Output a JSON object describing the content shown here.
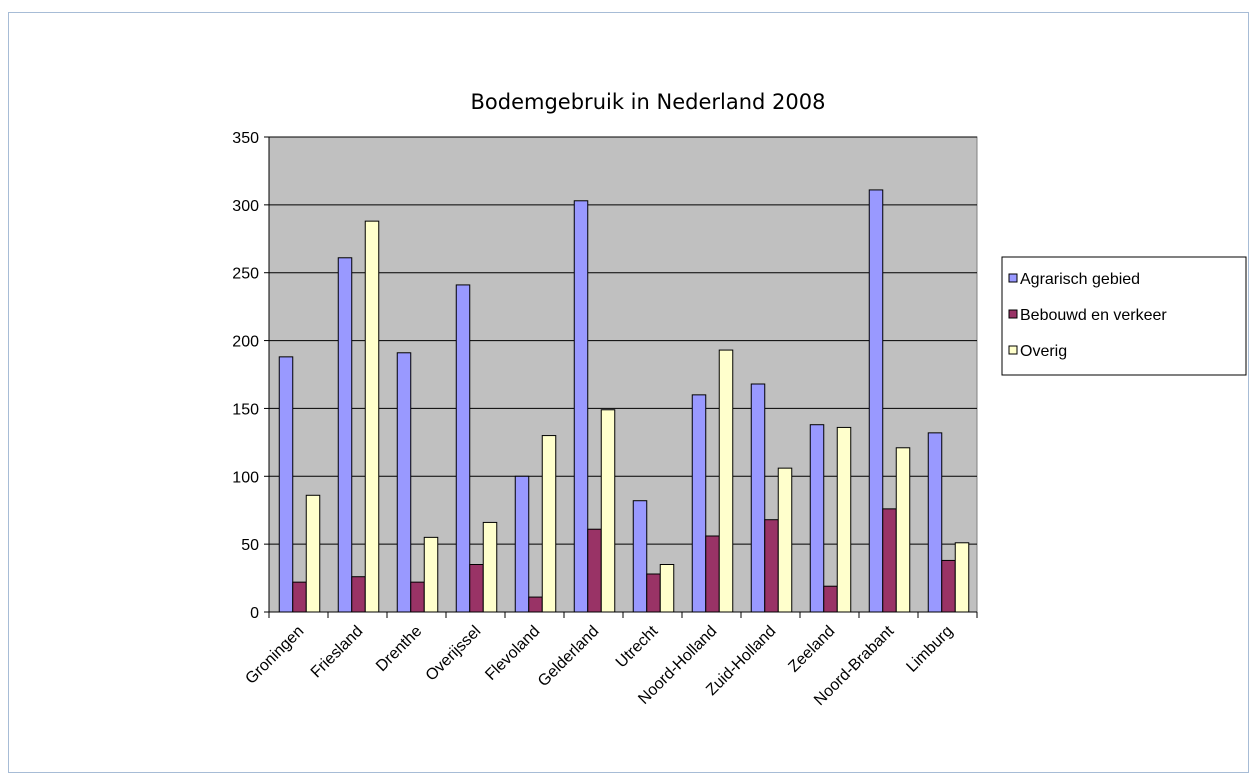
{
  "chart_data": {
    "type": "bar",
    "title": "Bodemgebruik in Nederland 2008",
    "xlabel": "",
    "ylabel": "",
    "ylim": [
      0,
      350
    ],
    "yticks": [
      0,
      50,
      100,
      150,
      200,
      250,
      300,
      350
    ],
    "grid": true,
    "legend_position": "right",
    "categories": [
      "Groningen",
      "Friesland",
      "Drenthe",
      "Overijssel",
      "Flevoland",
      "Gelderland",
      "Utrecht",
      "Noord-Holland",
      "Zuid-Holland",
      "Zeeland",
      "Noord-Brabant",
      "Limburg"
    ],
    "series": [
      {
        "name": "Agrarisch gebied",
        "color": "#9999ff",
        "values": [
          188,
          261,
          191,
          241,
          100,
          303,
          82,
          160,
          168,
          138,
          311,
          132
        ]
      },
      {
        "name": "Bebouwd en verkeer",
        "color": "#993366",
        "values": [
          22,
          26,
          22,
          35,
          11,
          61,
          28,
          56,
          68,
          19,
          76,
          38
        ]
      },
      {
        "name": "Overig",
        "color": "#ffffcc",
        "values": [
          86,
          288,
          55,
          66,
          130,
          149,
          35,
          193,
          106,
          136,
          121,
          51
        ]
      }
    ],
    "plot_background": "#c0c0c0"
  }
}
